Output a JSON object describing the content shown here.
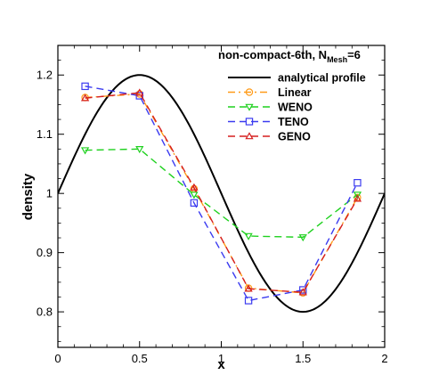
{
  "chart_data": {
    "type": "line",
    "title_main": "non-compact-6th, N",
    "title_sub": "Mesh",
    "title_tail": "=6",
    "xlabel": "x",
    "ylabel": "density",
    "xlim": [
      0,
      2
    ],
    "ylim": [
      0.74,
      1.25
    ],
    "xticks": [
      "0",
      "0.5",
      "1",
      "1.5",
      "2"
    ],
    "xtick_values": [
      0,
      0.5,
      1,
      1.5,
      2
    ],
    "yticks": [
      "0.8",
      "0.9",
      "1",
      "1.1",
      "1.2"
    ],
    "ytick_values": [
      0.8,
      0.9,
      1.0,
      1.1,
      1.2
    ],
    "legend_position": "top-right",
    "grid": false,
    "series": [
      {
        "name": "analytical profile",
        "color": "#000000",
        "dash": "solid",
        "marker": "none",
        "function": "1 + 0.2*sin(pi*x)",
        "x_range": [
          0,
          2
        ]
      },
      {
        "name": "Linear",
        "color": "#ff9b19",
        "dash": "dashdot",
        "marker": "circle",
        "x": [
          0.1667,
          0.5,
          0.8333,
          1.1667,
          1.5,
          1.8333
        ],
        "values": [
          1.162,
          1.168,
          1.008,
          0.84,
          0.832,
          0.993
        ]
      },
      {
        "name": "WENO",
        "color": "#1fd11f",
        "dash": "dashed",
        "marker": "triangle-down",
        "x": [
          0.1667,
          0.5,
          0.8333,
          1.1667,
          1.5,
          1.8333
        ],
        "values": [
          1.073,
          1.075,
          0.998,
          0.928,
          0.926,
          0.998
        ]
      },
      {
        "name": "TENO",
        "color": "#3b3bf0",
        "dash": "dashed",
        "marker": "square",
        "x": [
          0.1667,
          0.5,
          0.8333,
          1.1667,
          1.5,
          1.8333
        ],
        "values": [
          1.181,
          1.165,
          0.984,
          0.819,
          0.837,
          1.018
        ]
      },
      {
        "name": "GENO",
        "color": "#d51f1f",
        "dash": "dashed",
        "marker": "triangle-up",
        "x": [
          0.1667,
          0.5,
          0.8333,
          1.1667,
          1.5,
          1.8333
        ],
        "values": [
          1.161,
          1.17,
          1.01,
          0.839,
          0.833,
          0.991
        ]
      }
    ]
  }
}
